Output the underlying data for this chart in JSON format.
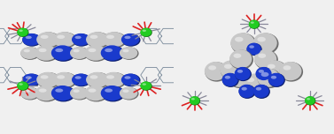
{
  "background_color": "#f0f0f0",
  "left_panel": {
    "metal_color": "#22cc22",
    "gray": "#c8c8c8",
    "blue": "#1a3acc",
    "red": "#dd2222",
    "stick_col": "#888899",
    "wire_col": "#778899"
  },
  "right_panel": {
    "metal_color": "#22cc22",
    "gray": "#c8c8c8",
    "blue": "#1a3acc",
    "red": "#dd2222",
    "stick_col": "#888899",
    "wire_col": "#778899"
  }
}
